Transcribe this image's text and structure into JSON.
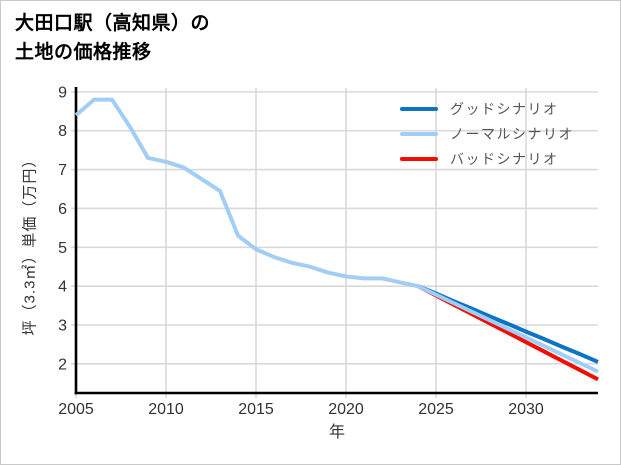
{
  "card": {
    "title_line1": "大田口駅（高知県）の",
    "title_line2": "土地の価格推移"
  },
  "chart_data": {
    "type": "line",
    "title": "大田口駅（高知県）の土地の価格推移",
    "xlabel": "年",
    "ylabel": "坪（3.3㎡）単価（万円）",
    "xlim": [
      2005,
      2034
    ],
    "ylim": [
      1.25,
      9.1
    ],
    "xticks": [
      2005,
      2010,
      2015,
      2020,
      2025,
      2030
    ],
    "yticks": [
      2,
      3,
      4,
      5,
      6,
      7,
      8,
      9
    ],
    "grid": true,
    "legend_position": "upper-right",
    "colors": {
      "grid": "#d9d9d9",
      "axis": "#000000",
      "tick_label": "#333333",
      "legend_text": "#555555",
      "background": "#ffffff"
    },
    "series": [
      {
        "name": "グッドシナリオ",
        "color": "#0d73c4",
        "x": [
          2024,
          2025,
          2026,
          2027,
          2028,
          2029,
          2030,
          2031,
          2032,
          2033,
          2034
        ],
        "y": [
          4.0,
          3.81,
          3.61,
          3.42,
          3.22,
          3.03,
          2.83,
          2.64,
          2.44,
          2.25,
          2.05
        ]
      },
      {
        "name": "ノーマルシナリオ",
        "color": "#a2cdf4",
        "x": [
          2005,
          2006,
          2007,
          2008,
          2009,
          2010,
          2011,
          2012,
          2013,
          2014,
          2015,
          2016,
          2017,
          2018,
          2019,
          2020,
          2021,
          2022,
          2023,
          2024,
          2025,
          2026,
          2027,
          2028,
          2029,
          2030,
          2031,
          2032,
          2033,
          2034
        ],
        "y": [
          8.4,
          8.8,
          8.8,
          8.1,
          7.3,
          7.2,
          7.05,
          6.75,
          6.45,
          5.3,
          4.95,
          4.75,
          4.6,
          4.5,
          4.35,
          4.25,
          4.2,
          4.2,
          4.1,
          4.0,
          3.78,
          3.56,
          3.34,
          3.12,
          2.9,
          2.68,
          2.46,
          2.24,
          2.02,
          1.8
        ]
      },
      {
        "name": "バッドシナリオ",
        "color": "#f20d00",
        "x": [
          2024,
          2025,
          2026,
          2027,
          2028,
          2029,
          2030,
          2031,
          2032,
          2033,
          2034
        ],
        "y": [
          4.0,
          3.76,
          3.52,
          3.28,
          3.04,
          2.8,
          2.56,
          2.32,
          2.08,
          1.84,
          1.6
        ]
      }
    ]
  }
}
